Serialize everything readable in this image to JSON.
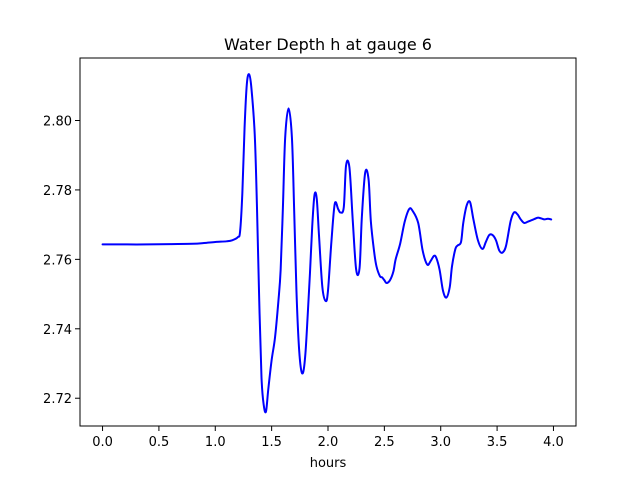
{
  "chart_data": {
    "type": "line",
    "title": "Water Depth h at gauge 6",
    "xlabel": "hours",
    "ylabel": "",
    "xlim": [
      -0.2,
      4.2
    ],
    "ylim": [
      2.712,
      2.818
    ],
    "xticks": [
      0.0,
      0.5,
      1.0,
      1.5,
      2.0,
      2.5,
      3.0,
      3.5,
      4.0
    ],
    "xtick_labels": [
      "0.0",
      "0.5",
      "1.0",
      "1.5",
      "2.0",
      "2.5",
      "3.0",
      "3.5",
      "4.0"
    ],
    "yticks": [
      2.72,
      2.74,
      2.76,
      2.78,
      2.8
    ],
    "ytick_labels": [
      "2.72",
      "2.74",
      "2.76",
      "2.78",
      "2.80"
    ],
    "grid": false,
    "series": [
      {
        "color": "#0000ff",
        "x": [
          0.0,
          0.2,
          0.4,
          0.6,
          0.8,
          0.9,
          1.0,
          1.1,
          1.15,
          1.2,
          1.22,
          1.24,
          1.26,
          1.28,
          1.3,
          1.32,
          1.35,
          1.37,
          1.39,
          1.41,
          1.43,
          1.45,
          1.47,
          1.5,
          1.53,
          1.56,
          1.58,
          1.6,
          1.62,
          1.65,
          1.68,
          1.7,
          1.72,
          1.74,
          1.76,
          1.78,
          1.8,
          1.82,
          1.84,
          1.86,
          1.88,
          1.9,
          1.92,
          1.95,
          1.98,
          2.0,
          2.03,
          2.06,
          2.09,
          2.11,
          2.14,
          2.16,
          2.19,
          2.22,
          2.25,
          2.28,
          2.3,
          2.33,
          2.36,
          2.38,
          2.41,
          2.43,
          2.46,
          2.48,
          2.5,
          2.52,
          2.55,
          2.58,
          2.6,
          2.64,
          2.68,
          2.72,
          2.75,
          2.8,
          2.84,
          2.88,
          2.91,
          2.94,
          2.96,
          2.99,
          3.02,
          3.05,
          3.08,
          3.1,
          3.13,
          3.15,
          3.18,
          3.2,
          3.23,
          3.26,
          3.29,
          3.33,
          3.37,
          3.4,
          3.43,
          3.46,
          3.49,
          3.52,
          3.55,
          3.58,
          3.62,
          3.65,
          3.68,
          3.71,
          3.74,
          3.77,
          3.8,
          3.83,
          3.86,
          3.89,
          3.92,
          3.95,
          3.98
        ],
        "y": [
          2.7643,
          2.7643,
          2.7643,
          2.7644,
          2.7645,
          2.7647,
          2.765,
          2.7652,
          2.7655,
          2.7664,
          2.768,
          2.779,
          2.798,
          2.8105,
          2.8133,
          2.8095,
          2.796,
          2.775,
          2.748,
          2.726,
          2.718,
          2.7162,
          2.7225,
          2.731,
          2.7375,
          2.748,
          2.757,
          2.775,
          2.795,
          2.8035,
          2.795,
          2.774,
          2.751,
          2.736,
          2.7285,
          2.7275,
          2.733,
          2.744,
          2.756,
          2.7695,
          2.7785,
          2.7775,
          2.767,
          2.752,
          2.748,
          2.751,
          2.765,
          2.776,
          2.7745,
          2.7735,
          2.775,
          2.787,
          2.7865,
          2.771,
          2.757,
          2.7575,
          2.772,
          2.785,
          2.783,
          2.771,
          2.762,
          2.758,
          2.7552,
          2.7548,
          2.754,
          2.7532,
          2.754,
          2.7565,
          2.76,
          2.7645,
          2.7708,
          2.7745,
          2.774,
          2.7705,
          2.7625,
          2.7585,
          2.7595,
          2.761,
          2.7605,
          2.757,
          2.751,
          2.749,
          2.752,
          2.758,
          2.763,
          2.764,
          2.765,
          2.7705,
          2.7755,
          2.7765,
          2.7715,
          2.7655,
          2.763,
          2.765,
          2.767,
          2.767,
          2.7655,
          2.7625,
          2.762,
          2.764,
          2.771,
          2.7735,
          2.773,
          2.7715,
          2.7705,
          2.7708,
          2.7712,
          2.7716,
          2.772,
          2.7718,
          2.7715,
          2.7717,
          2.7715
        ]
      }
    ]
  }
}
